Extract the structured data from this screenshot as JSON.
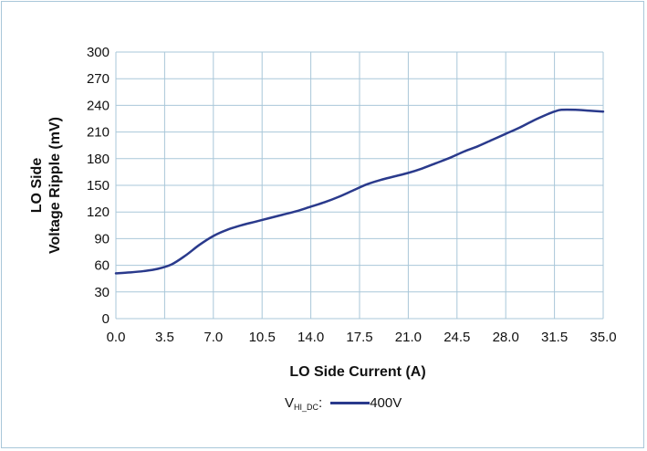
{
  "chart_data": {
    "type": "line",
    "title": "",
    "xlabel": "LO Side Current (A)",
    "ylabel_line1": "LO Side",
    "ylabel_line2": "Voltage Ripple (mV)",
    "xlim": [
      0,
      35
    ],
    "ylim": [
      0,
      300
    ],
    "x_ticks": [
      "0.0",
      "3.5",
      "7.0",
      "10.5",
      "14.0",
      "17.5",
      "21.0",
      "24.5",
      "28.0",
      "31.5",
      "35.0"
    ],
    "y_ticks": [
      "0",
      "30",
      "60",
      "90",
      "120",
      "150",
      "180",
      "210",
      "240",
      "270",
      "300"
    ],
    "grid": true,
    "legend_placement": "bottom",
    "legend_label_main": "V",
    "legend_label_sub": "HI_DC",
    "legend_label_suffix": ":",
    "series": [
      {
        "name": "400V",
        "color": "#2a3a8c",
        "x": [
          0,
          1,
          2,
          3,
          4,
          5,
          6,
          7,
          8,
          9,
          10,
          11,
          12,
          13,
          14,
          15,
          16,
          17,
          18,
          19,
          20,
          21,
          22,
          23,
          24,
          25,
          26,
          27,
          28,
          29,
          30,
          31,
          31.5,
          32,
          33,
          34,
          35
        ],
        "y": [
          51,
          52,
          53.5,
          56,
          61,
          71,
          83,
          93,
          100,
          105,
          109,
          113,
          117,
          121,
          126,
          131,
          137,
          144,
          151,
          156,
          160,
          164,
          169,
          175,
          181,
          188,
          194,
          201,
          208,
          215,
          223,
          230,
          233,
          235,
          235,
          234,
          233
        ]
      }
    ]
  }
}
